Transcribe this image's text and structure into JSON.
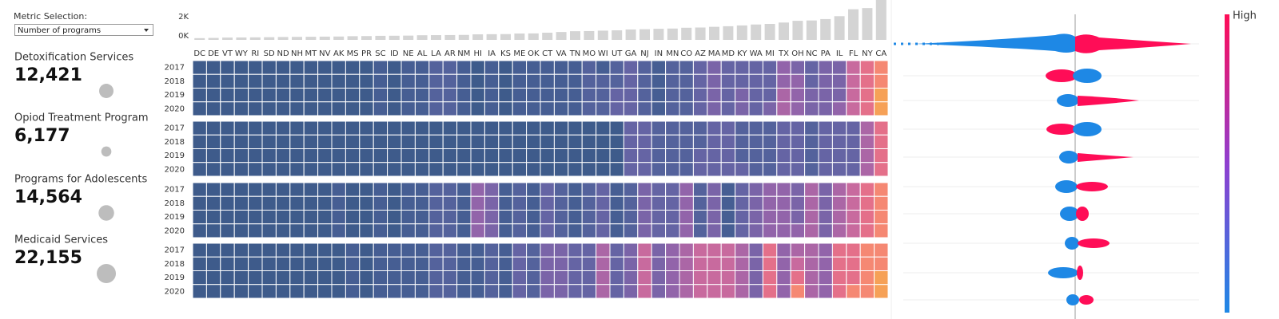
{
  "controls": {
    "label": "Metric Selection:",
    "selected": "Number of programs"
  },
  "chart_data": [
    {
      "type": "bar",
      "categories": [
        "DC",
        "DE",
        "VT",
        "WY",
        "RI",
        "SD",
        "ND",
        "NH",
        "MT",
        "NV",
        "AK",
        "MS",
        "PR",
        "SC",
        "ID",
        "NE",
        "AL",
        "LA",
        "AR",
        "NM",
        "HI",
        "IA",
        "KS",
        "ME",
        "OK",
        "CT",
        "VA",
        "TN",
        "MO",
        "WI",
        "UT",
        "GA",
        "NJ",
        "IN",
        "MN",
        "CO",
        "AZ",
        "MA",
        "MD",
        "KY",
        "WA",
        "MI",
        "TX",
        "OH",
        "NC",
        "PA",
        "IL",
        "FL",
        "NY",
        "CA"
      ],
      "values": [
        150,
        170,
        200,
        210,
        220,
        230,
        250,
        260,
        270,
        280,
        290,
        320,
        330,
        350,
        360,
        370,
        400,
        410,
        420,
        430,
        480,
        490,
        500,
        550,
        560,
        620,
        680,
        750,
        760,
        800,
        830,
        900,
        920,
        960,
        980,
        1050,
        1070,
        1130,
        1180,
        1250,
        1330,
        1380,
        1500,
        1650,
        1680,
        1800,
        2050,
        2650,
        2750,
        3600
      ],
      "color": "#d4d4d4",
      "ylim": [
        0,
        3450
      ],
      "yticks": [
        {
          "value": 0,
          "label": "0K"
        },
        {
          "value": 2000,
          "label": "2K"
        }
      ]
    },
    {
      "type": "heatmap",
      "y_categories": [
        "2017",
        "2018",
        "2019",
        "2020"
      ],
      "colorscale": [
        "#3e5b8b",
        "#465e93",
        "#54629c",
        "#6564a4",
        "#7a64a8",
        "#9264aa",
        "#ab66a6",
        "#c86a9e",
        "#e4708a",
        "#f58873",
        "#f6a157"
      ],
      "series": [
        {
          "name": "Detoxification Services",
          "total": 12421,
          "total_label": "12,421",
          "values": [
            [
              0,
              0,
              0,
              0,
              0,
              0,
              0,
              0,
              0,
              0,
              0,
              0,
              0,
              1,
              0,
              1,
              1,
              2,
              2,
              1,
              0,
              1,
              0,
              1,
              1,
              1,
              1,
              1,
              2,
              1,
              2,
              3,
              2,
              1,
              2,
              2,
              3,
              4,
              3,
              3,
              3,
              3,
              5,
              4,
              3,
              4,
              4,
              7,
              8,
              9
            ],
            [
              0,
              0,
              0,
              0,
              0,
              0,
              0,
              0,
              0,
              0,
              0,
              0,
              0,
              1,
              0,
              1,
              1,
              2,
              2,
              1,
              0,
              1,
              0,
              1,
              1,
              1,
              1,
              1,
              2,
              2,
              2,
              3,
              2,
              1,
              2,
              2,
              3,
              4,
              3,
              3,
              3,
              3,
              5,
              5,
              3,
              4,
              4,
              7,
              8,
              9
            ],
            [
              0,
              0,
              0,
              0,
              0,
              0,
              0,
              0,
              0,
              0,
              0,
              0,
              0,
              1,
              0,
              1,
              1,
              2,
              2,
              1,
              0,
              1,
              0,
              1,
              1,
              1,
              1,
              1,
              2,
              2,
              3,
              3,
              2,
              1,
              2,
              2,
              3,
              4,
              3,
              4,
              3,
              3,
              6,
              5,
              4,
              4,
              4,
              7,
              8,
              10
            ],
            [
              0,
              0,
              0,
              0,
              0,
              0,
              0,
              0,
              0,
              0,
              0,
              0,
              0,
              1,
              0,
              1,
              1,
              2,
              2,
              1,
              0,
              1,
              0,
              1,
              1,
              1,
              1,
              1,
              2,
              2,
              3,
              3,
              2,
              1,
              2,
              2,
              3,
              4,
              3,
              4,
              3,
              4,
              6,
              5,
              4,
              4,
              5,
              7,
              8,
              10
            ]
          ]
        },
        {
          "name": "Opiod Treatment Program",
          "total": 6177,
          "total_label": "6,177",
          "values": [
            [
              0,
              0,
              0,
              0,
              0,
              0,
              0,
              0,
              0,
              0,
              0,
              0,
              0,
              0,
              0,
              0,
              0,
              0,
              0,
              0,
              0,
              0,
              0,
              0,
              0,
              0,
              0,
              0,
              0,
              0,
              0,
              3,
              3,
              2,
              2,
              2,
              2,
              3,
              3,
              2,
              2,
              2,
              3,
              3,
              2,
              3,
              3,
              3,
              6,
              8
            ],
            [
              0,
              0,
              0,
              0,
              0,
              0,
              0,
              0,
              0,
              0,
              0,
              0,
              0,
              0,
              0,
              0,
              0,
              0,
              0,
              0,
              0,
              0,
              0,
              0,
              0,
              0,
              0,
              0,
              0,
              0,
              0,
              3,
              3,
              2,
              2,
              2,
              2,
              3,
              3,
              2,
              2,
              2,
              3,
              3,
              2,
              3,
              3,
              3,
              6,
              8
            ],
            [
              0,
              0,
              0,
              0,
              0,
              0,
              0,
              0,
              0,
              0,
              0,
              0,
              0,
              0,
              0,
              0,
              0,
              0,
              0,
              0,
              0,
              0,
              0,
              0,
              0,
              0,
              0,
              0,
              0,
              0,
              0,
              3,
              3,
              2,
              2,
              2,
              3,
              3,
              3,
              2,
              2,
              2,
              3,
              3,
              2,
              3,
              3,
              3,
              6,
              8
            ],
            [
              0,
              0,
              0,
              0,
              0,
              0,
              0,
              0,
              0,
              0,
              0,
              0,
              0,
              0,
              0,
              0,
              0,
              0,
              0,
              0,
              0,
              0,
              0,
              0,
              0,
              0,
              0,
              0,
              0,
              0,
              0,
              3,
              3,
              2,
              2,
              2,
              3,
              3,
              3,
              3,
              2,
              2,
              3,
              3,
              2,
              3,
              3,
              3,
              6,
              8
            ]
          ]
        },
        {
          "name": "Programs for Adolescents",
          "total": 14564,
          "total_label": "14,564",
          "values": [
            [
              0,
              0,
              0,
              0,
              0,
              0,
              0,
              0,
              0,
              0,
              1,
              0,
              0,
              1,
              0,
              1,
              1,
              2,
              2,
              1,
              5,
              4,
              1,
              2,
              1,
              3,
              2,
              1,
              2,
              3,
              1,
              2,
              4,
              3,
              3,
              5,
              2,
              4,
              1,
              3,
              4,
              5,
              5,
              4,
              6,
              4,
              6,
              7,
              8,
              9
            ],
            [
              0,
              0,
              0,
              0,
              0,
              0,
              0,
              0,
              0,
              0,
              1,
              0,
              0,
              1,
              0,
              1,
              1,
              2,
              2,
              1,
              5,
              4,
              1,
              2,
              1,
              3,
              2,
              1,
              2,
              3,
              1,
              2,
              4,
              3,
              3,
              5,
              2,
              4,
              1,
              3,
              4,
              5,
              5,
              4,
              6,
              4,
              6,
              7,
              8,
              9
            ],
            [
              0,
              0,
              0,
              0,
              0,
              0,
              0,
              0,
              0,
              0,
              1,
              0,
              0,
              1,
              0,
              1,
              1,
              2,
              2,
              1,
              5,
              4,
              1,
              2,
              1,
              3,
              2,
              1,
              2,
              3,
              1,
              2,
              4,
              3,
              3,
              5,
              2,
              4,
              1,
              3,
              4,
              5,
              5,
              4,
              6,
              4,
              6,
              7,
              8,
              9
            ],
            [
              0,
              0,
              0,
              0,
              0,
              0,
              0,
              0,
              0,
              0,
              1,
              0,
              0,
              1,
              0,
              1,
              1,
              2,
              2,
              1,
              5,
              4,
              1,
              2,
              1,
              3,
              2,
              1,
              2,
              3,
              1,
              2,
              4,
              3,
              3,
              5,
              2,
              4,
              1,
              3,
              4,
              5,
              5,
              5,
              6,
              4,
              6,
              7,
              8,
              9
            ]
          ]
        },
        {
          "name": "Medicaid Services",
          "total": 22155,
          "total_label": "22,155",
          "values": [
            [
              0,
              0,
              0,
              0,
              0,
              0,
              0,
              0,
              0,
              0,
              0,
              1,
              0,
              1,
              1,
              1,
              1,
              2,
              2,
              1,
              1,
              2,
              1,
              3,
              2,
              4,
              4,
              3,
              3,
              6,
              3,
              4,
              7,
              4,
              5,
              6,
              7,
              7,
              7,
              6,
              4,
              8,
              5,
              6,
              6,
              5,
              8,
              8,
              9,
              9
            ],
            [
              0,
              0,
              0,
              0,
              0,
              0,
              0,
              0,
              0,
              0,
              0,
              1,
              0,
              1,
              1,
              1,
              1,
              2,
              2,
              1,
              1,
              2,
              1,
              3,
              2,
              4,
              4,
              3,
              3,
              6,
              3,
              4,
              7,
              4,
              5,
              6,
              7,
              7,
              7,
              6,
              4,
              8,
              5,
              7,
              6,
              5,
              8,
              8,
              9,
              9
            ],
            [
              0,
              0,
              0,
              0,
              0,
              0,
              0,
              0,
              0,
              0,
              0,
              1,
              0,
              1,
              1,
              1,
              1,
              2,
              2,
              1,
              1,
              2,
              1,
              3,
              2,
              4,
              4,
              3,
              3,
              6,
              3,
              4,
              7,
              4,
              5,
              6,
              7,
              7,
              7,
              6,
              4,
              8,
              5,
              8,
              6,
              5,
              8,
              8,
              9,
              10
            ],
            [
              0,
              0,
              0,
              0,
              0,
              0,
              0,
              0,
              0,
              0,
              0,
              1,
              0,
              1,
              1,
              1,
              1,
              2,
              2,
              1,
              1,
              2,
              1,
              3,
              2,
              4,
              4,
              3,
              3,
              6,
              3,
              4,
              7,
              4,
              5,
              6,
              7,
              7,
              7,
              6,
              4,
              8,
              5,
              9,
              6,
              5,
              8,
              9,
              9,
              10
            ]
          ]
        }
      ]
    }
  ],
  "shap": {
    "color_label": "High"
  }
}
